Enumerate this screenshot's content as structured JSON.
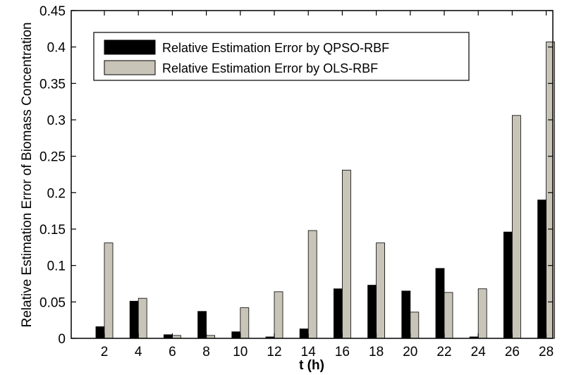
{
  "chart_data": {
    "type": "bar",
    "title": "",
    "xlabel": "t (h)",
    "ylabel": "Relative Estimation Error of Biomass Concentration",
    "categories": [
      "2",
      "4",
      "6",
      "8",
      "10",
      "12",
      "14",
      "16",
      "18",
      "20",
      "22",
      "24",
      "26",
      "28"
    ],
    "series": [
      {
        "name": "Relative Estimation Error by QPSO-RBF",
        "color": "#000000",
        "values": [
          0.016,
          0.051,
          0.005,
          0.037,
          0.009,
          0.002,
          0.013,
          0.068,
          0.073,
          0.065,
          0.096,
          0.002,
          0.146,
          0.19
        ]
      },
      {
        "name": "Relative Estimation Error by OLS-RBF",
        "color": "#c8c4b8",
        "values": [
          0.131,
          0.055,
          0.004,
          0.004,
          0.042,
          0.064,
          0.148,
          0.231,
          0.131,
          0.036,
          0.063,
          0.068,
          0.306,
          0.407
        ]
      }
    ],
    "ylim": [
      0,
      0.45
    ],
    "yticks": [
      "0",
      "0.05",
      "0.1",
      "0.15",
      "0.2",
      "0.25",
      "0.3",
      "0.35",
      "0.4",
      "0.45"
    ],
    "grid": false,
    "legend": "top-left"
  }
}
